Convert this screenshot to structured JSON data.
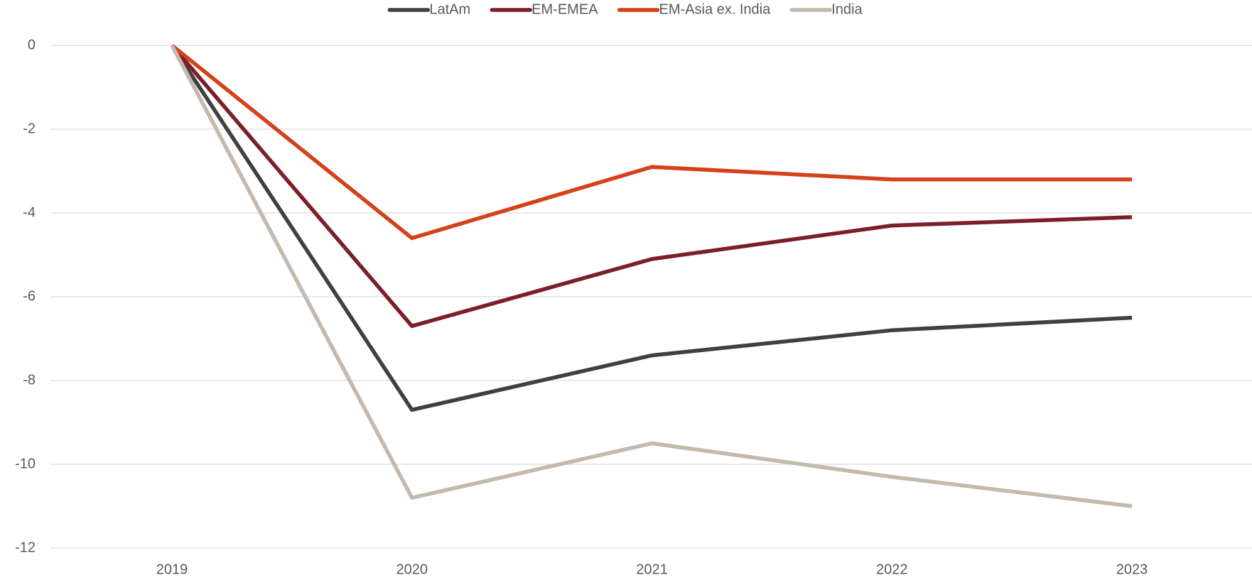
{
  "chart_data": {
    "type": "line",
    "categories": [
      "2019",
      "2020",
      "2021",
      "2022",
      "2023"
    ],
    "series": [
      {
        "name": "LatAm",
        "color": "#404040",
        "values": [
          0,
          -8.7,
          -7.4,
          -6.8,
          -6.5
        ]
      },
      {
        "name": "EM-EMEA",
        "color": "#7b1f2a",
        "values": [
          0,
          -6.7,
          -5.1,
          -4.3,
          -4.1
        ]
      },
      {
        "name": "EM-Asia ex. India",
        "color": "#d4411a",
        "values": [
          0,
          -4.6,
          -2.9,
          -3.2,
          -3.2
        ]
      },
      {
        "name": "India",
        "color": "#c4b9ab",
        "values": [
          0,
          -10.8,
          -9.5,
          -10.3,
          -11.0
        ]
      }
    ],
    "ylim": [
      -12,
      0
    ],
    "yticks": [
      0,
      -2,
      -4,
      -6,
      -8,
      -10,
      -12
    ],
    "grid": true,
    "legend": "top"
  }
}
